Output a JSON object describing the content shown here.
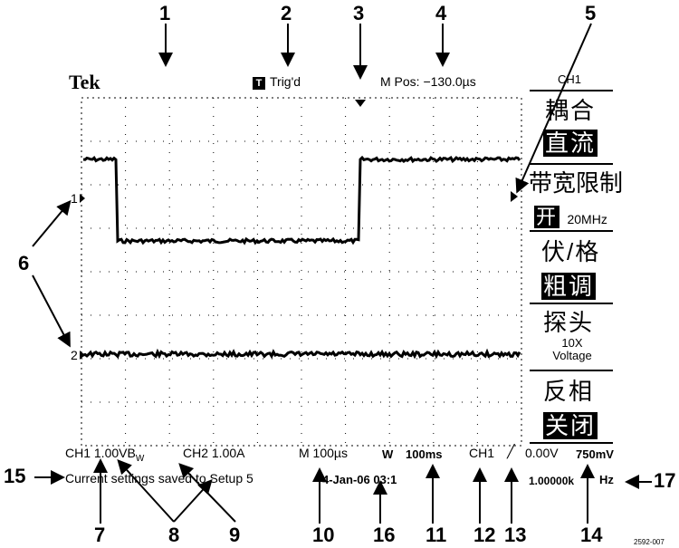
{
  "callouts": [
    "1",
    "2",
    "3",
    "4",
    "5",
    "6",
    "7",
    "8",
    "9",
    "10",
    "11",
    "12",
    "13",
    "14",
    "15",
    "16",
    "17"
  ],
  "header": {
    "brand": "Tek",
    "trigger_box": "T",
    "trigger_status": "Trig'd",
    "m_pos": "M Pos: −130.0µs"
  },
  "menu": {
    "title": "CH1",
    "coupling_label": "耦合",
    "coupling_value": "直流",
    "bw_label": "带宽限制",
    "bw_value": "开",
    "bw_freq": "20MHz",
    "volts_label": "伏/格",
    "volts_value": "粗调",
    "probe_label": "探头",
    "probe_atten": "10X",
    "probe_type": "Voltage",
    "invert_label": "反相",
    "invert_value": "关闭"
  },
  "traces": {
    "ch1_marker": "1",
    "ch2_marker": "2"
  },
  "status": {
    "ch1_scale": "CH1 1.00V",
    "bw_symbol": "B",
    "bw_sub": "W",
    "ch2_scale": "CH2  1.00A",
    "timebase": "M 100µs",
    "window_label": "W",
    "window_time": "100ms",
    "trig_source": "CH1",
    "trig_slope": "╱",
    "trig_level": "0.00V",
    "trig_level2": "750mV",
    "message": "Current settings saved to Setup 5",
    "date_time": "4-Jan-06 03:1",
    "freq_value": "1.00000k",
    "freq_unit": "Hz"
  },
  "figure_id": "2592-007",
  "colors": {
    "fg": "#000000",
    "bg": "#ffffff"
  }
}
